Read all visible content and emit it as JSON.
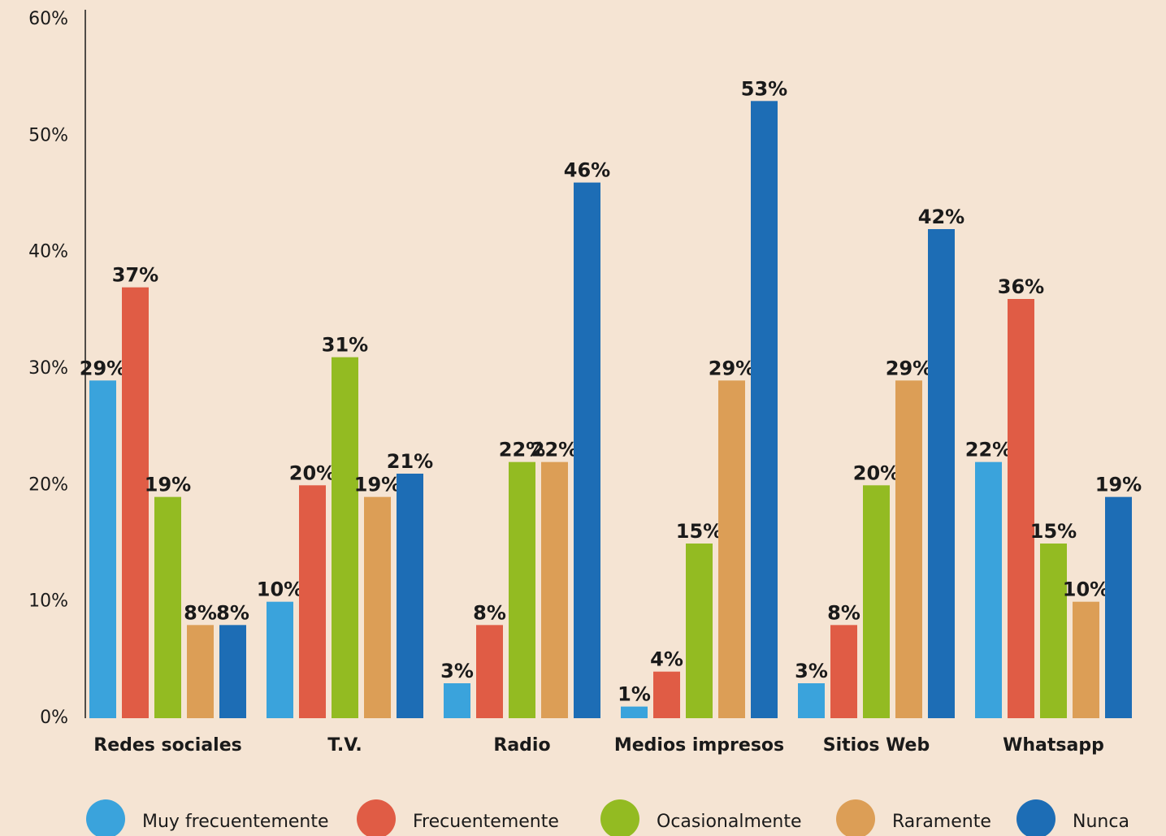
{
  "chart_data": {
    "type": "bar",
    "categories": [
      "Redes sociales",
      "T.V.",
      "Radio",
      "Medios impresos",
      "Sitios Web",
      "Whatsapp"
    ],
    "series": [
      {
        "name": "Muy frecuentemente",
        "color": "#3aa3dc",
        "values": [
          29,
          10,
          3,
          1,
          3,
          22
        ],
        "value_labels": [
          "29%",
          "10%",
          "3%",
          "1%",
          "3%",
          "22%"
        ]
      },
      {
        "name": "Frecuentemente",
        "color": "#e05c45",
        "values": [
          37,
          20,
          8,
          4,
          8,
          36
        ],
        "value_labels": [
          "37%",
          "20%",
          "8%",
          "4%",
          "8%",
          "36%"
        ]
      },
      {
        "name": "Ocasionalmente",
        "color": "#93bb22",
        "values": [
          19,
          31,
          22,
          15,
          20,
          15
        ],
        "value_labels": [
          "19%",
          "31%",
          "22%",
          "15%",
          "20%",
          "15%"
        ]
      },
      {
        "name": "Raramente",
        "color": "#dc9e56",
        "values": [
          8,
          19,
          22,
          29,
          29,
          10
        ],
        "value_labels": [
          "8%",
          "19%",
          "22%",
          "29%",
          "29%",
          "10%"
        ]
      },
      {
        "name": "Nunca",
        "color": "#1d6db5",
        "values": [
          8,
          21,
          46,
          53,
          42,
          19
        ],
        "value_labels": [
          "8%",
          "21%",
          "46%",
          "53%",
          "42%",
          "19%"
        ]
      }
    ],
    "ylim": [
      0,
      60
    ],
    "yticks": [
      {
        "value": 0,
        "label": "0%"
      },
      {
        "value": 10,
        "label": "10%"
      },
      {
        "value": 20,
        "label": "20%"
      },
      {
        "value": 30,
        "label": "30%"
      },
      {
        "value": 40,
        "label": "40%"
      },
      {
        "value": 50,
        "label": "50%"
      },
      {
        "value": 60,
        "label": "60%"
      }
    ],
    "grid": false,
    "legend": "bottom"
  }
}
